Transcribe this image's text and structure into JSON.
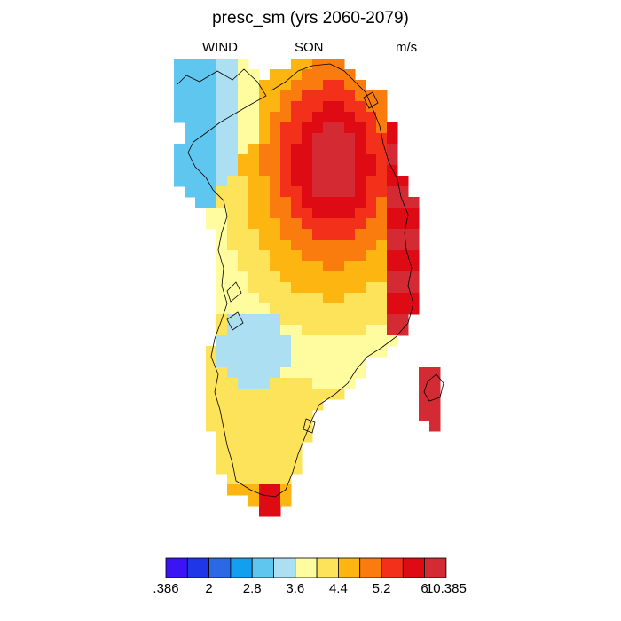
{
  "title": "presc_sm (yrs 2060-2079)",
  "subtitle_left": "WIND",
  "subtitle_center": "SON",
  "subtitle_right": "m/s",
  "colorbar": {
    "colors": [
      "#3a14f5",
      "#1f35e8",
      "#2b68e6",
      "#139ff0",
      "#5fc6f0",
      "#addff2",
      "#fffca0",
      "#fde35a",
      "#fcb511",
      "#fb7c0e",
      "#f3311a",
      "#de0a14",
      "#d42a33"
    ],
    "tick_labels": [
      ".386",
      "2",
      "2.8",
      "3.6",
      "4.4",
      "5.2",
      "6",
      "10.385"
    ]
  }
}
